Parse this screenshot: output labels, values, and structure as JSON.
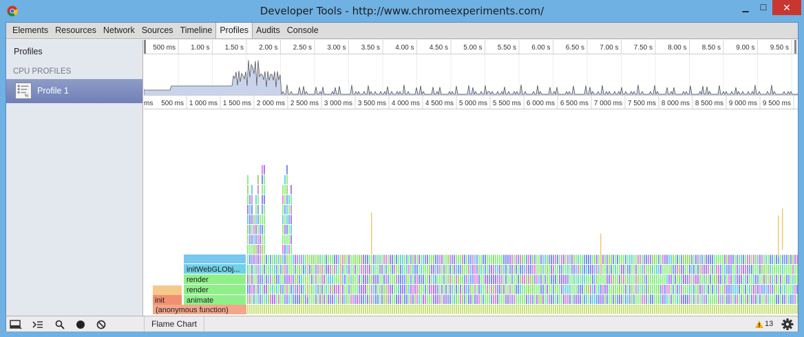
{
  "window": {
    "title": "Developer Tools - http://www.chromeexperiments.com/"
  },
  "tabs": [
    {
      "label": "Elements"
    },
    {
      "label": "Resources"
    },
    {
      "label": "Network"
    },
    {
      "label": "Sources"
    },
    {
      "label": "Timeline"
    },
    {
      "label": "Profiles",
      "active": true
    },
    {
      "label": "Audits"
    },
    {
      "label": "Console"
    }
  ],
  "sidebar": {
    "header": "Profiles",
    "section": "CPU PROFILES",
    "item": "Profile 1"
  },
  "overview_ticks": [
    "500 ms",
    "1.00 s",
    "1.50 s",
    "2.00 s",
    "2.50 s",
    "3.00 s",
    "3.50 s",
    "4.00 s",
    "4.50 s",
    "5.00 s",
    "5.50 s",
    "6.00 s",
    "6.50 s",
    "7.00 s",
    "7.50 s",
    "8.00 s",
    "8.50 s",
    "9.00 s",
    "9.50 s"
  ],
  "main_ticks": [
    "500 ms",
    "1 000 ms",
    "1 500 ms",
    "2 000 ms",
    "2 500 ms",
    "3 000 ms",
    "3 500 ms",
    "4 000 ms",
    "4 500 ms",
    "5 000 ms",
    "5 500 ms",
    "6 000 ms",
    "6 500 ms",
    "7 000 ms",
    "7 500 ms",
    "8 000 ms",
    "8 500 ms",
    "9 000 ms",
    "9 500 ms"
  ],
  "main_ruler_edge_label": "ms",
  "flame_labels": {
    "anonymous": "(anonymous function)",
    "init": "init",
    "animate": "animate",
    "render1": "render",
    "render2": "render",
    "initwebgl": "initWebGLObj..."
  },
  "statusbar": {
    "view_mode": "Flame Chart",
    "warning_count": "13"
  },
  "colors": {
    "accent": "#6f80b8",
    "anonymous": "#f3a68a",
    "init": "#f09070",
    "animate": "#8ff08a",
    "render": "#8ff08a",
    "initwebgl": "#6ed1e6"
  }
}
